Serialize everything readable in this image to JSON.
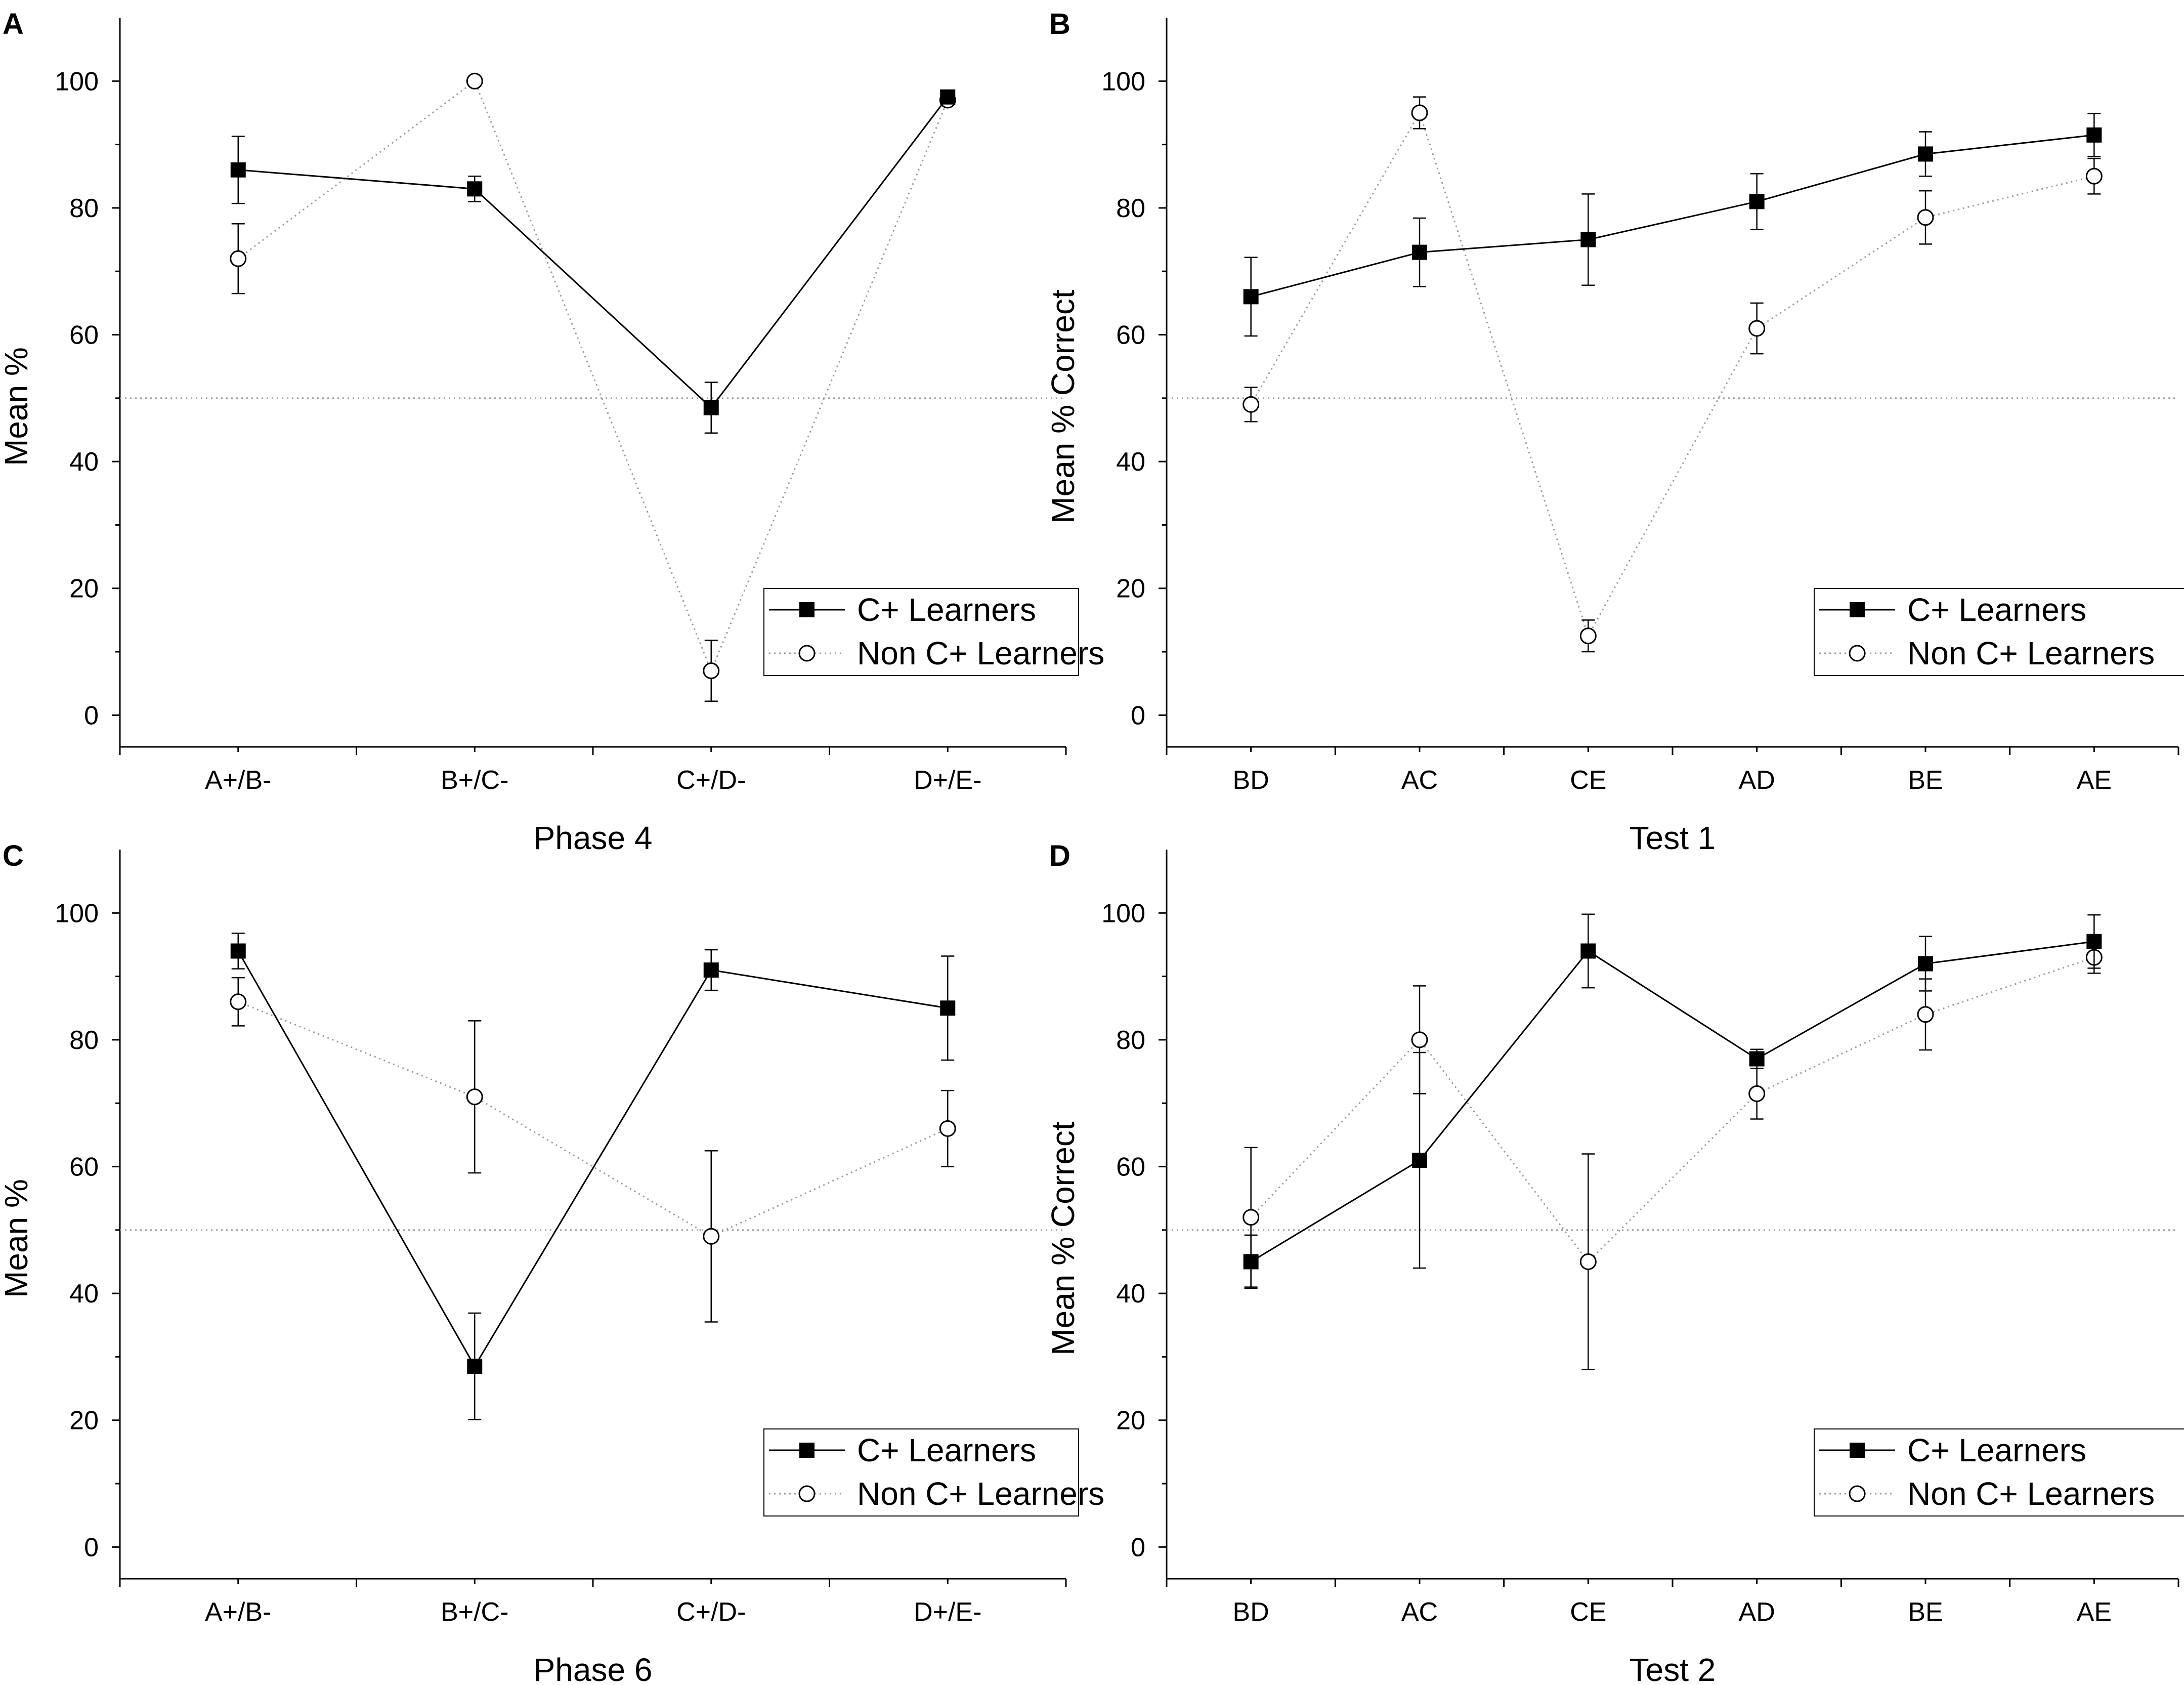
{
  "figure": {
    "series_colors": {
      "line": "#000000",
      "ref": "#999999"
    },
    "legend_labels": [
      "C+ Learners",
      "Non C+ Learners"
    ]
  },
  "chart_data": [
    {
      "panel": "A",
      "type": "line",
      "title": "",
      "xlabel": "Phase 4",
      "ylabel": "Mean %",
      "categories": [
        "A+/B-",
        "B+/C-",
        "C+/D-",
        "D+/E-"
      ],
      "ylim": [
        -5,
        110
      ],
      "yticks": [
        0,
        20,
        40,
        60,
        80,
        100
      ],
      "reference_line": 50,
      "series": [
        {
          "name": "C+ Learners",
          "marker": "filled-square",
          "style": "solid",
          "values": [
            86,
            83,
            48.5,
            97.5
          ],
          "errors": [
            5.3,
            2,
            4,
            0.8
          ]
        },
        {
          "name": "Non C+ Learners",
          "marker": "open-circle",
          "style": "dotted",
          "values": [
            72,
            100,
            7,
            97
          ],
          "errors": [
            5.5,
            0,
            4.8,
            0.8
          ]
        }
      ]
    },
    {
      "panel": "B",
      "type": "line",
      "title": "",
      "xlabel": "Test 1",
      "ylabel": "Mean % Correct",
      "categories": [
        "BD",
        "AC",
        "CE",
        "AD",
        "BE",
        "AE"
      ],
      "ylim": [
        -5,
        110
      ],
      "yticks": [
        0,
        20,
        40,
        60,
        80,
        100
      ],
      "reference_line": 50,
      "series": [
        {
          "name": "C+ Learners",
          "marker": "filled-square",
          "style": "solid",
          "values": [
            66,
            73,
            75,
            81,
            88.5,
            91.5
          ],
          "errors": [
            6.2,
            5.4,
            7.2,
            4.4,
            3.5,
            3.4
          ]
        },
        {
          "name": "Non C+ Learners",
          "marker": "open-circle",
          "style": "dotted",
          "values": [
            49,
            95,
            12.5,
            61,
            78.5,
            85
          ],
          "errors": [
            2.7,
            2.5,
            2.5,
            4,
            4.2,
            2.8
          ]
        }
      ]
    },
    {
      "panel": "C",
      "type": "line",
      "title": "",
      "xlabel": "Phase 6",
      "ylabel": "Mean %",
      "categories": [
        "A+/B-",
        "B+/C-",
        "C+/D-",
        "D+/E-"
      ],
      "ylim": [
        -5,
        110
      ],
      "yticks": [
        0,
        20,
        40,
        60,
        80,
        100
      ],
      "reference_line": 50,
      "series": [
        {
          "name": "C+ Learners",
          "marker": "filled-square",
          "style": "solid",
          "values": [
            94,
            28.5,
            91,
            85
          ],
          "errors": [
            2.8,
            8.4,
            3.2,
            8.2
          ]
        },
        {
          "name": "Non C+ Learners",
          "marker": "open-circle",
          "style": "dotted",
          "values": [
            86,
            71,
            49,
            66
          ],
          "errors": [
            3.8,
            12,
            13.5,
            6
          ]
        }
      ]
    },
    {
      "panel": "D",
      "type": "line",
      "title": "",
      "xlabel": "Test 2",
      "ylabel": "Mean % Correct",
      "categories": [
        "BD",
        "AC",
        "CE",
        "AD",
        "BE",
        "AE"
      ],
      "ylim": [
        -5,
        110
      ],
      "yticks": [
        0,
        20,
        40,
        60,
        80,
        100
      ],
      "reference_line": 50,
      "series": [
        {
          "name": "C+ Learners",
          "marker": "filled-square",
          "style": "solid",
          "values": [
            45,
            61,
            94,
            77,
            92,
            95.5
          ],
          "errors": [
            4.2,
            17,
            5.8,
            1.5,
            4.3,
            4.2
          ]
        },
        {
          "name": "Non C+ Learners",
          "marker": "open-circle",
          "style": "dotted",
          "values": [
            52,
            80,
            45,
            71.5,
            84,
            93
          ],
          "errors": [
            11,
            8.5,
            17,
            4,
            5.6,
            2.5
          ]
        }
      ]
    }
  ]
}
